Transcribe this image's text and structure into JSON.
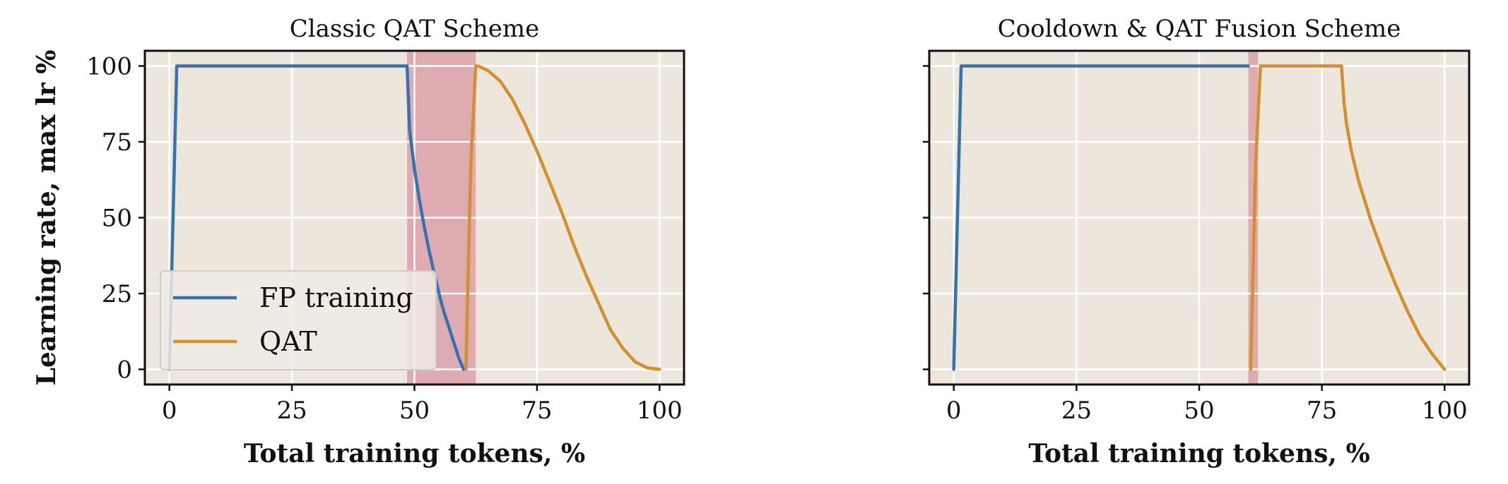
{
  "chart_data": [
    {
      "type": "line",
      "title": "Classic QAT Scheme",
      "xlabel": "Total training tokens, %",
      "ylabel": "Learning rate, max lr %",
      "xlim": [
        -5,
        105
      ],
      "ylim": [
        -5,
        105
      ],
      "xticks": [
        "0",
        "25",
        "50",
        "75",
        "100"
      ],
      "yticks": [
        "0",
        "25",
        "50",
        "75",
        "100"
      ],
      "grid": true,
      "legend": "lower-left",
      "shaded_region": {
        "x": [
          48.5,
          62.5
        ],
        "color": "#d9a0a8"
      },
      "series": [
        {
          "name": "FP training",
          "color": "#3572b0",
          "x": [
            0,
            1.5,
            48.5,
            49,
            50,
            51,
            52,
            53,
            54,
            55,
            56,
            57,
            58,
            59,
            60
          ],
          "y": [
            0,
            100,
            100,
            79,
            66,
            56,
            47,
            39,
            32,
            25,
            19,
            14,
            9,
            4,
            0
          ]
        },
        {
          "name": "QAT",
          "color": "#d4902f",
          "x": [
            60.5,
            61.5,
            62.5,
            63,
            65,
            67.5,
            70,
            72.5,
            75,
            77.5,
            80,
            82.5,
            85,
            87.5,
            90,
            92.5,
            95,
            97.5,
            100
          ],
          "y": [
            0,
            68,
            100,
            100,
            98.5,
            95,
            89,
            81,
            72,
            62,
            52,
            41,
            31,
            22,
            13,
            7,
            2.5,
            0.5,
            0
          ]
        }
      ]
    },
    {
      "type": "line",
      "title": "Cooldown & QAT Fusion Scheme",
      "xlabel": "Total training tokens, %",
      "ylabel": "",
      "xlim": [
        -5,
        105
      ],
      "ylim": [
        -5,
        105
      ],
      "xticks": [
        "0",
        "25",
        "50",
        "75",
        "100"
      ],
      "yticks": [
        "0",
        "25",
        "50",
        "75",
        "100"
      ],
      "grid": true,
      "shaded_region": {
        "x": [
          60,
          62
        ],
        "color": "#d9a0a8"
      },
      "series": [
        {
          "name": "FP training",
          "color": "#3572b0",
          "x": [
            0,
            1.5,
            60
          ],
          "y": [
            0,
            100,
            100
          ]
        },
        {
          "name": "QAT",
          "color": "#d4902f",
          "x": [
            60.5,
            61.5,
            62.5,
            79,
            79.5,
            80,
            81,
            82.5,
            85,
            87.5,
            90,
            92.5,
            95,
            97.5,
            100
          ],
          "y": [
            0,
            68,
            100,
            100,
            88,
            81,
            72,
            62,
            49,
            38,
            28,
            19,
            11,
            5,
            0
          ]
        }
      ]
    }
  ]
}
